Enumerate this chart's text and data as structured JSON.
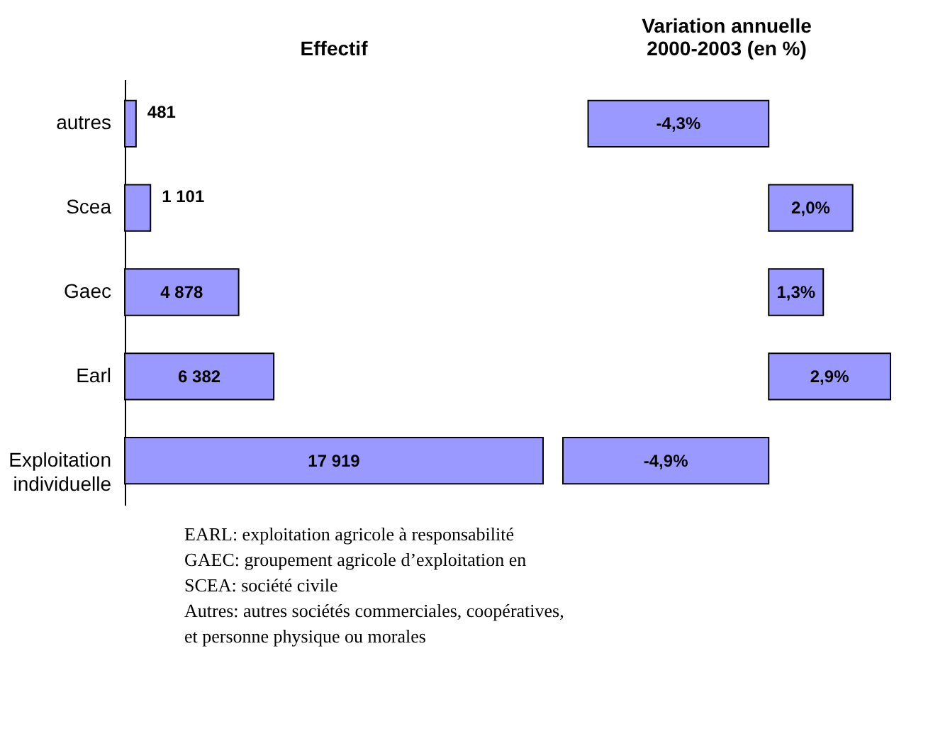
{
  "chart_data": [
    {
      "type": "bar",
      "orientation": "horizontal",
      "title": "Effectif",
      "categories": [
        "autres",
        "Scea",
        "Gaec",
        "Earl",
        "Exploitation\nindividuelle"
      ],
      "values": [
        481,
        1101,
        4878,
        6382,
        17919
      ],
      "value_labels": [
        "481",
        "1 101",
        "4 878",
        "6 382",
        "17 919"
      ],
      "color": "#9999ff",
      "tick_labels": "y",
      "grid": false,
      "annotations": [
        "EARL: exploitation agricole à responsabilité",
        "GAEC: groupement agricole d’exploitation en",
        "SCEA: société civile",
        "Autres: autres sociétés commerciales, coopératives,",
        "et personne physique ou morales"
      ]
    },
    {
      "type": "bar",
      "orientation": "horizontal",
      "title": "Variation annuelle\n2000-2003 (en %)",
      "categories": [
        "autres",
        "Scea",
        "Gaec",
        "Earl",
        "Exploitation\nindividuelle"
      ],
      "values": [
        -4.3,
        2.0,
        1.3,
        2.9,
        -4.9
      ],
      "value_labels": [
        "-4,3%",
        "2,0%",
        "1,3%",
        "2,9%",
        "-4,9%"
      ],
      "color": "#9999ff",
      "tick_labels": false,
      "grid": false
    }
  ]
}
